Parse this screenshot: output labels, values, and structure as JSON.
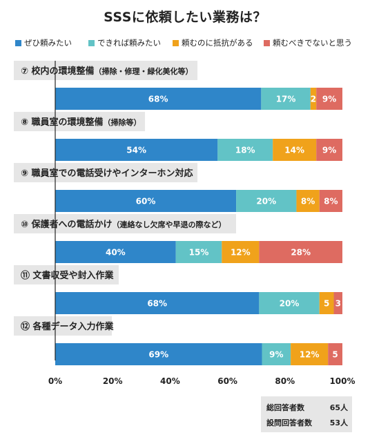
{
  "title": "SSSに依頼したい業務は？",
  "colors": {
    "s1": "#2f86c9",
    "s2": "#62c3c6",
    "s3": "#f0a21b",
    "s4": "#de6b61",
    "label_bg": "#e6e6e6"
  },
  "totals": {
    "total_label": "総回答者数",
    "total_value": "65人",
    "q_label": "設問回答者数",
    "q_value": "53人"
  },
  "chart_data": {
    "type": "bar",
    "orientation": "horizontal",
    "stacked": true,
    "title": "SSSに依頼したい業務は？",
    "xlim": [
      0,
      100
    ],
    "ticks": [
      "0%",
      "20%",
      "40%",
      "60%",
      "80%",
      "100%"
    ],
    "legend_position": "top",
    "series": [
      {
        "name": "ぜひ頼みたい",
        "color": "#2f86c9"
      },
      {
        "name": "できれば頼みたい",
        "color": "#62c3c6"
      },
      {
        "name": "頼むのに抵抗がある",
        "color": "#f0a21b"
      },
      {
        "name": "頼むべきでないと思う",
        "color": "#de6b61"
      }
    ],
    "categories": [
      {
        "label": "⑦ 校内の環境整備",
        "sub": "（掃除・修理・緑化美化等）",
        "values": [
          71,
          17,
          2,
          9
        ],
        "labels": [
          "68%",
          "17%",
          "2",
          "9%"
        ]
      },
      {
        "label": "⑧ 職員室の環境整備",
        "sub": "（掃除等）",
        "values": [
          56,
          19,
          15,
          9
        ],
        "labels": [
          "54%",
          "18%",
          "14%",
          "9%"
        ]
      },
      {
        "label": "⑨ 職員室での電話受けやインターホン対応",
        "sub": "",
        "values": [
          63,
          21,
          8,
          8
        ],
        "labels": [
          "60%",
          "20%",
          "8%",
          "8%"
        ]
      },
      {
        "label": "⑩ 保護者への電話かけ",
        "sub": "（連絡なし欠席や早退の際など）",
        "values": [
          42,
          16,
          13,
          29
        ],
        "labels": [
          "40%",
          "15%",
          "12%",
          "28%"
        ]
      },
      {
        "label": "⑪ 文書収受や封入作業",
        "sub": "",
        "values": [
          71,
          21,
          5,
          3
        ],
        "labels": [
          "68%",
          "20%",
          "5",
          "3"
        ]
      },
      {
        "label": "⑫ 各種データ入力作業",
        "sub": "",
        "values": [
          72,
          10,
          13,
          5
        ],
        "labels": [
          "69%",
          "9%",
          "12%",
          "5"
        ]
      }
    ]
  }
}
